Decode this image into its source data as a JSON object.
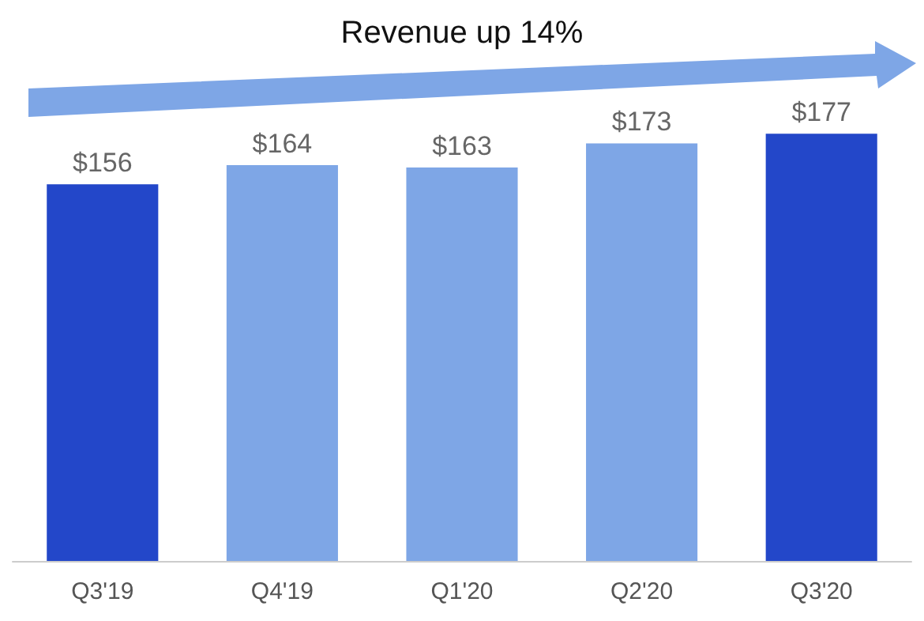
{
  "chart_data": {
    "type": "bar",
    "categories": [
      "Q3'19",
      "Q4'19",
      "Q1'20",
      "Q2'20",
      "Q3'20"
    ],
    "values": [
      156,
      164,
      163,
      173,
      177
    ],
    "colors": [
      "#2347c9",
      "#7ea6e6",
      "#7ea6e6",
      "#7ea6e6",
      "#2347c9"
    ],
    "value_labels": [
      "$156",
      "$164",
      "$163",
      "$173",
      "$177"
    ],
    "annotations": [
      "Revenue up 14%"
    ],
    "grid": false
  }
}
